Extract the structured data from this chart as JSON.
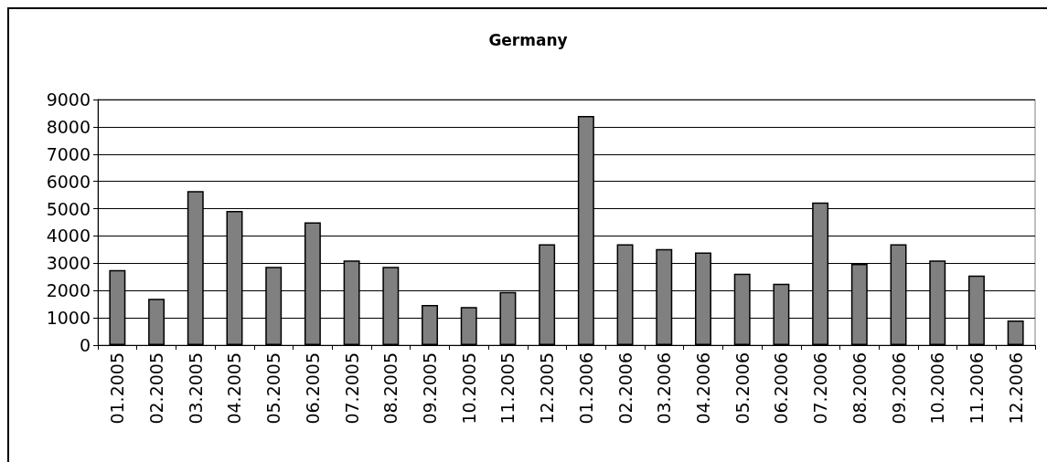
{
  "chart_data": {
    "type": "bar",
    "title": "Germany",
    "categories": [
      "01.2005",
      "02.2005",
      "03.2005",
      "04.2005",
      "05.2005",
      "06.2005",
      "07.2005",
      "08.2005",
      "09.2005",
      "10.2005",
      "11.2005",
      "12.2005",
      "01.2006",
      "02.2006",
      "03.2006",
      "04.2006",
      "05.2006",
      "06.2006",
      "07.2006",
      "08.2006",
      "09.2006",
      "10.2006",
      "11.2006",
      "12.2006"
    ],
    "values": [
      2750,
      1700,
      5650,
      4920,
      2870,
      4500,
      3100,
      2870,
      1470,
      1400,
      1950,
      3700,
      8400,
      3700,
      3520,
      3400,
      2620,
      2250,
      5230,
      2980,
      3700,
      3100,
      2550,
      900
    ],
    "color": "#808080",
    "ylim": [
      0,
      9000
    ],
    "yticks": [
      0,
      1000,
      2000,
      3000,
      4000,
      5000,
      6000,
      7000,
      8000,
      9000
    ],
    "grid": "y"
  }
}
